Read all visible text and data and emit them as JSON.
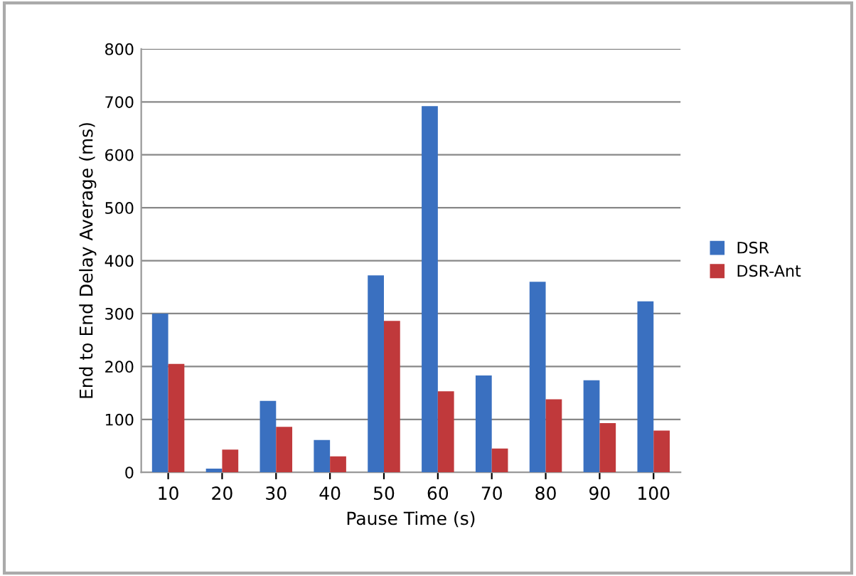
{
  "chart_data": {
    "type": "bar",
    "xlabel": "Pause Time (s)",
    "ylabel": "End to End Delay Average (ms)",
    "categories": [
      "10",
      "20",
      "30",
      "40",
      "50",
      "60",
      "70",
      "80",
      "90",
      "100"
    ],
    "series": [
      {
        "name": "DSR",
        "color": "#3a70c0",
        "values": [
          300,
          7,
          135,
          61,
          372,
          692,
          183,
          360,
          174,
          323
        ]
      },
      {
        "name": "DSR-Ant",
        "color": "#c0393b",
        "values": [
          205,
          43,
          86,
          30,
          286,
          153,
          45,
          138,
          93,
          79
        ]
      }
    ],
    "ylim": [
      0,
      800
    ],
    "yticks": [
      0,
      100,
      200,
      300,
      400,
      500,
      600,
      700,
      800
    ],
    "grid": "y",
    "legend": "right"
  }
}
